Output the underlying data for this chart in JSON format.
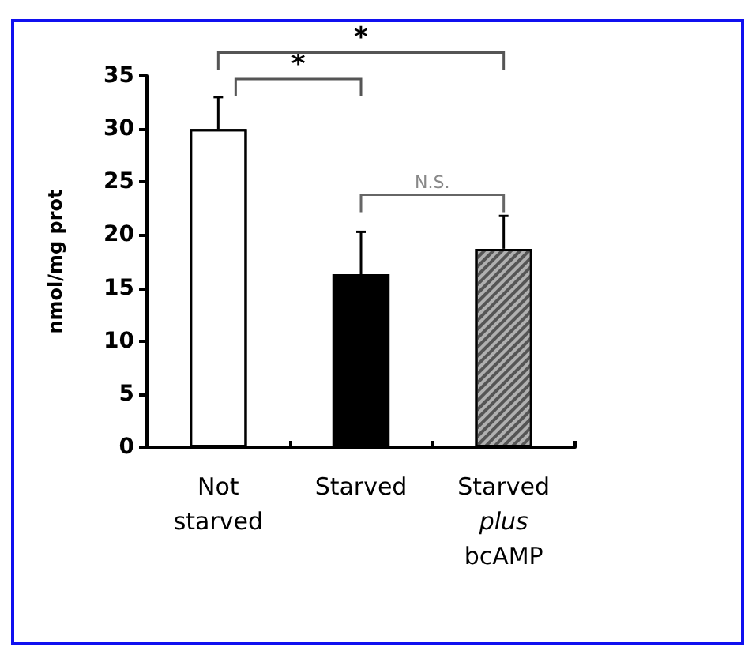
{
  "chart_data": {
    "type": "bar",
    "ylabel": "nmol/mg prot",
    "categories": [
      "Not\nstarved",
      "Starved",
      "Starved\nplus\nbcAMP"
    ],
    "values": [
      30,
      16.3,
      18.7
    ],
    "colors": [
      "#ffffff",
      "#000000",
      "#b0b0b0"
    ],
    "errors": [
      [
        30,
        33
      ],
      [
        16.3,
        20.3
      ],
      [
        18.7,
        21.8
      ]
    ],
    "ylim": [
      0,
      35
    ],
    "yticks": [
      0,
      5,
      10,
      15,
      20,
      25,
      30,
      35
    ],
    "grid": false,
    "annotations": [
      "*",
      "*",
      "N.S."
    ]
  }
}
